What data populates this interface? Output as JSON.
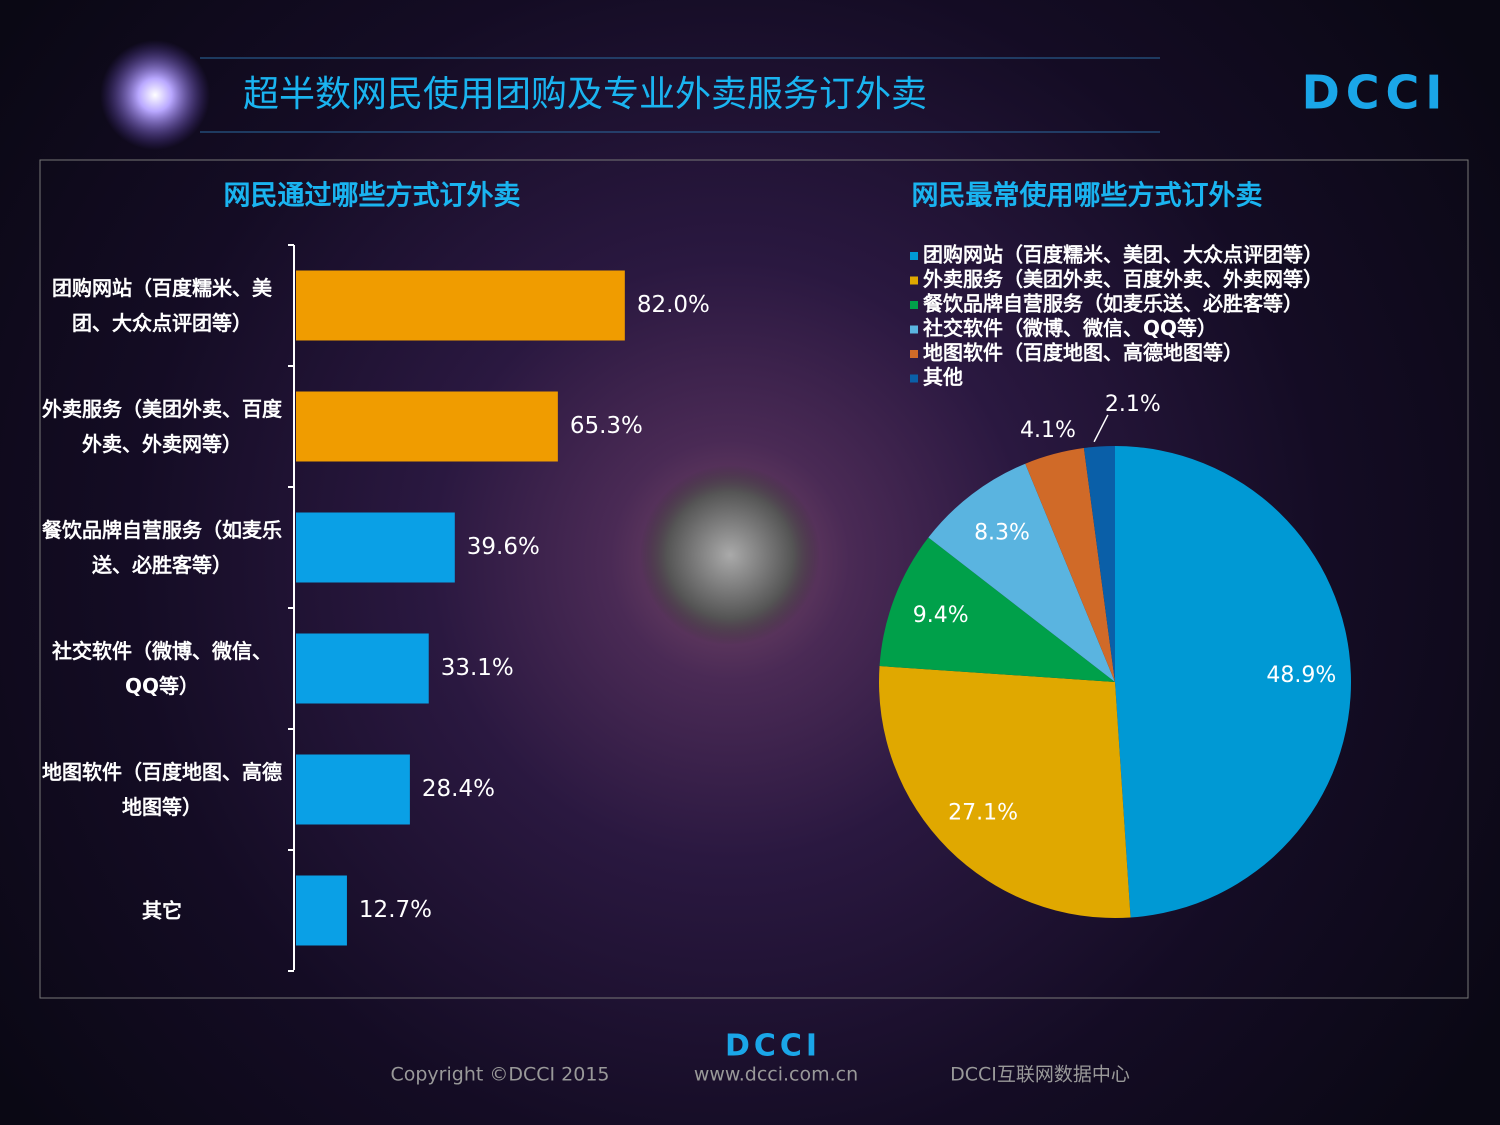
{
  "header": {
    "title": "超半数网民使用团购及专业外卖服务订外卖",
    "logo": "DCCI"
  },
  "chart_data": [
    {
      "type": "bar",
      "orientation": "horizontal",
      "title": "网民通过哪些方式订外卖",
      "categories": [
        "团购网站（百度糯米、美团、大众点评团等）",
        "外卖服务（美团外卖、百度外卖、外卖网等）",
        "餐饮品牌自营服务（如麦乐送、必胜客等）",
        "社交软件（微博、微信、QQ等）",
        "地图软件（百度地图、高德地图等）",
        "其它"
      ],
      "values": [
        82.0,
        65.3,
        39.6,
        33.1,
        28.4,
        12.7
      ],
      "value_labels": [
        "82.0%",
        "65.3%",
        "39.6%",
        "33.1%",
        "28.4%",
        "12.7%"
      ],
      "colors": [
        "#f09c00",
        "#f09c00",
        "#0aa0e6",
        "#0aa0e6",
        "#0aa0e6",
        "#0aa0e6"
      ]
    },
    {
      "type": "pie",
      "title": "网民最常使用哪些方式订外卖",
      "categories": [
        "团购网站（百度糯米、美团、大众点评团等）",
        "外卖服务（美团外卖、百度外卖、外卖网等）",
        "餐饮品牌自营服务（如麦乐送、必胜客等）",
        "社交软件（微博、微信、QQ等）",
        "地图软件（百度地图、高德地图等）",
        "其他"
      ],
      "values": [
        48.9,
        27.1,
        9.4,
        8.3,
        4.1,
        2.1
      ],
      "value_labels": [
        "48.9%",
        "27.1%",
        "9.4%",
        "8.3%",
        "4.1%",
        "2.1%"
      ],
      "colors": [
        "#0099d4",
        "#e0a800",
        "#00a04a",
        "#5ab4e0",
        "#d06a28",
        "#0a5fa8"
      ]
    }
  ],
  "footer": {
    "logo": "DCCI",
    "copyright": "Copyright ©DCCI 2015",
    "url": "www.dcci.com.cn",
    "org": "DCCI互联网数据中心"
  }
}
